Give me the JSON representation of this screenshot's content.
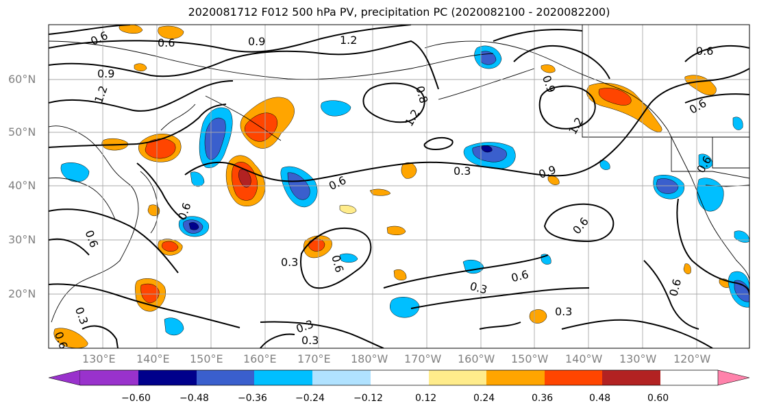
{
  "title": "2020081712 F012 500 hPa PV, precipitation PC (2020082100 - 2020082200)",
  "lat_labels": [
    "60°N",
    "50°N",
    "40°N",
    "30°N",
    "20°N"
  ],
  "lon_labels": [
    "130°E",
    "140°E",
    "150°E",
    "160°E",
    "170°E",
    "180°W",
    "170°W",
    "160°W",
    "150°W",
    "140°W",
    "130°W",
    "120°W"
  ],
  "contour_labels": [
    "0.6",
    "0.6",
    "0.9",
    "1.2",
    "0.6",
    "0.9",
    "1.2",
    "0.8",
    "1.2",
    "0.9",
    "1.2",
    "0.6",
    "0.6",
    "0.6",
    "0.3",
    "0.6",
    "0.9",
    "0.6",
    "0.6",
    "0.3",
    "0.6",
    "0.3",
    "0.6",
    "0.3",
    "0.3",
    "0.3",
    "0.3",
    "0.6",
    "0.6"
  ],
  "colorbar": {
    "colors": [
      "#9932cc",
      "#00008b",
      "#3a5fcd",
      "#00bfff",
      "#b0e2ff",
      "#ffffff",
      "#ffec8b",
      "#ffa500",
      "#ff4500",
      "#b22222",
      "#ff82ab"
    ],
    "ticks": [
      "−0.60",
      "−0.48",
      "−0.36",
      "−0.24",
      "−0.12",
      "0.12",
      "0.24",
      "0.36",
      "0.48",
      "0.60"
    ]
  },
  "colors": {
    "positive_light": "#ffec8b",
    "positive_mid": "#ffa500",
    "positive_strong": "#ff4500",
    "positive_max": "#b22222",
    "negative_light": "#b0e2ff",
    "negative_mid": "#00bfff",
    "negative_strong": "#3a5fcd",
    "negative_max": "#00008b"
  }
}
